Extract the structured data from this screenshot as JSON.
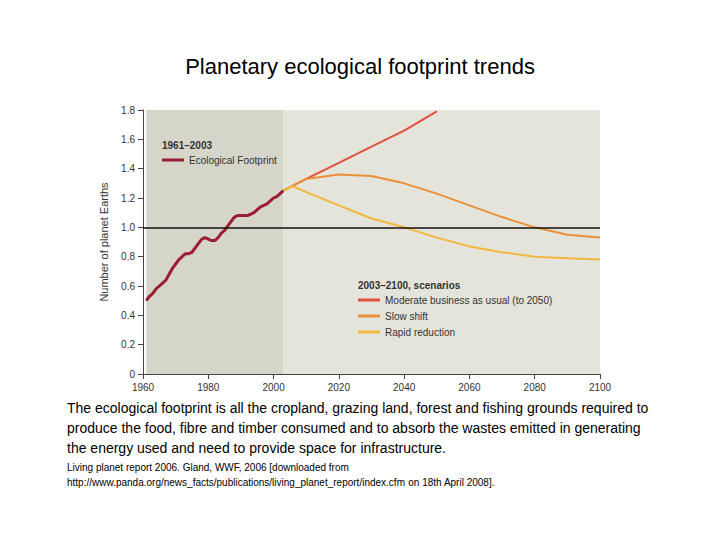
{
  "chart_data": {
    "type": "line",
    "title": "Planetary ecological footprint trends",
    "y_label": "Number of planet Earths",
    "xlim": [
      1960,
      2100
    ],
    "xticks": [
      1960,
      1980,
      2000,
      2020,
      2040,
      2060,
      2080,
      2100
    ],
    "ylim": [
      0,
      1.8
    ],
    "yticks": [
      0,
      0.2,
      0.4,
      0.6,
      0.8,
      {
        "value": 1,
        "label": "1.0"
      },
      1.2,
      1.4,
      1.6,
      1.8
    ],
    "grid": false,
    "hline": 1,
    "periods": [
      {
        "label": "1961–2003",
        "x": [
          1961,
          2003
        ],
        "color": "#d6d5c9"
      },
      {
        "label": "2003–2100, scenarios",
        "x": [
          2003,
          2100
        ],
        "color": "#e5e4da"
      }
    ],
    "series": [
      {
        "name": "Ecological Footprint",
        "color": "#9c1c32",
        "x": [
          1961,
          1962,
          1963,
          1964,
          1965,
          1966,
          1967,
          1968,
          1969,
          1970,
          1971,
          1972,
          1973,
          1974,
          1975,
          1976,
          1977,
          1978,
          1979,
          1980,
          1981,
          1982,
          1983,
          1984,
          1985,
          1986,
          1987,
          1988,
          1989,
          1990,
          1991,
          1992,
          1993,
          1994,
          1995,
          1996,
          1997,
          1998,
          1999,
          2000,
          2001,
          2002,
          2003
        ],
        "values": [
          0.5,
          0.53,
          0.55,
          0.58,
          0.6,
          0.62,
          0.64,
          0.68,
          0.72,
          0.75,
          0.78,
          0.8,
          0.82,
          0.82,
          0.83,
          0.86,
          0.89,
          0.92,
          0.93,
          0.92,
          0.91,
          0.91,
          0.93,
          0.96,
          0.98,
          1.01,
          1.04,
          1.07,
          1.08,
          1.08,
          1.08,
          1.08,
          1.09,
          1.1,
          1.12,
          1.14,
          1.15,
          1.16,
          1.18,
          1.2,
          1.21,
          1.23,
          1.25
        ]
      },
      {
        "name": "Moderate business as usual (to 2050)",
        "color": "#e0503c",
        "x": [
          2003,
          2010,
          2020,
          2030,
          2040,
          2050
        ],
        "values": [
          1.25,
          1.33,
          1.44,
          1.55,
          1.66,
          1.79
        ]
      },
      {
        "name": "Slow shift",
        "color": "#e8913a",
        "x": [
          2003,
          2010,
          2020,
          2030,
          2040,
          2050,
          2060,
          2070,
          2080,
          2090,
          2100
        ],
        "values": [
          1.25,
          1.33,
          1.36,
          1.35,
          1.3,
          1.23,
          1.15,
          1.07,
          1.0,
          0.95,
          0.93
        ]
      },
      {
        "name": "Rapid reduction",
        "color": "#f0b83c",
        "x": [
          2003,
          2006,
          2010,
          2020,
          2030,
          2040,
          2050,
          2060,
          2070,
          2080,
          2090,
          2100
        ],
        "values": [
          1.25,
          1.28,
          1.24,
          1.15,
          1.06,
          1.0,
          0.93,
          0.87,
          0.83,
          0.8,
          0.79,
          0.78
        ]
      }
    ],
    "caption": "The ecological footprint is all the cropland, grazing land, forest and fishing grounds required to produce the food, fibre and timber consumed and to absorb the wastes emitted in generating the energy used and need to provide space for infrastructure.",
    "source": {
      "text": "Living planet report 2006. Gland, WWF, 2006 [downloaded from",
      "link": "http://www.panda.org/news_facts/publications/living_planet_report/index.cfm",
      "after": "on 18th April 2008]."
    }
  }
}
